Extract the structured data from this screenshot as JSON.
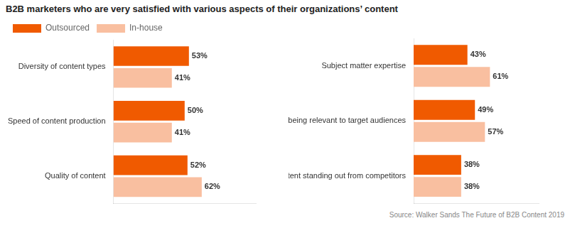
{
  "chart_data": [
    {
      "type": "bar",
      "orientation": "horizontal",
      "title": "B2B marketers who are very satisfied with various aspects of their organizations’ content",
      "categories": [
        "Diversity of content types",
        "Speed of content production",
        "Quality of content"
      ],
      "series": [
        {
          "name": "Outsourced",
          "color": "#f05a00",
          "values": [
            53,
            50,
            52
          ],
          "value_labels": [
            "53%",
            "50%",
            "52%"
          ]
        },
        {
          "name": "In-house",
          "color": "#f9bfa0",
          "values": [
            41,
            41,
            62
          ],
          "value_labels": [
            "41%",
            "41%",
            "62%"
          ]
        }
      ],
      "xlim": [
        0,
        100
      ],
      "grid": false,
      "tick_labels": "y",
      "data_labels": true,
      "legend": "top left"
    },
    {
      "type": "bar",
      "orientation": "horizontal",
      "categories": [
        "Subject matter expertise",
        "Content being relevant to target audiences",
        "Content standing out from competitors"
      ],
      "series": [
        {
          "name": "Outsourced",
          "color": "#f05a00",
          "values": [
            43,
            49,
            38
          ],
          "value_labels": [
            "43%",
            "49%",
            "38%"
          ]
        },
        {
          "name": "In-house",
          "color": "#f9bfa0",
          "values": [
            61,
            57,
            38
          ],
          "value_labels": [
            "61%",
            "57%",
            "38%"
          ]
        }
      ],
      "xlim": [
        0,
        100
      ],
      "grid": false,
      "tick_labels": "y",
      "data_labels": true,
      "annotations": [
        "Source: Walker Sands The Future of B2B Content 2019"
      ]
    }
  ]
}
